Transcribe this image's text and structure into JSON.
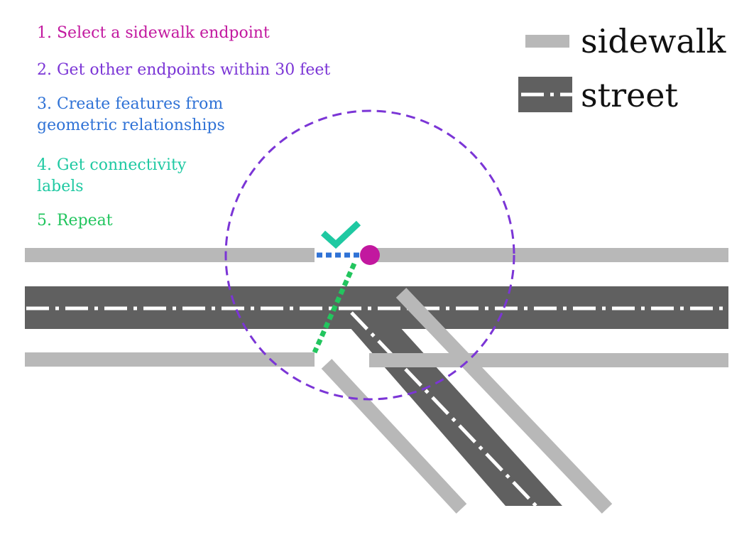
{
  "steps": [
    {
      "lines": [
        "1. Select a sidewalk endpoint"
      ],
      "color": "#c2189f"
    },
    {
      "lines": [
        "2. Get other endpoints within 30 feet"
      ],
      "color": "#7b35d6"
    },
    {
      "lines": [
        "3. Create features from",
        "geometric relationships"
      ],
      "color": "#2f72d6"
    },
    {
      "lines": [
        "4. Get connectivity",
        "labels"
      ],
      "color": "#1fc9a2"
    },
    {
      "lines": [
        "5. Repeat"
      ],
      "color": "#22c55e"
    }
  ],
  "legend": {
    "sidewalk": {
      "label": "sidewalk",
      "color": "#b8b8b8"
    },
    "street": {
      "label": "street",
      "color": "#606060",
      "centerline_color": "#ffffff"
    }
  },
  "colors": {
    "selected_endpoint": "#c2189f",
    "search_radius": "#7b35d6",
    "geometric_link": "#2f72d6",
    "connectivity_check": "#1fc9a2",
    "candidate_link": "#22c55e"
  }
}
